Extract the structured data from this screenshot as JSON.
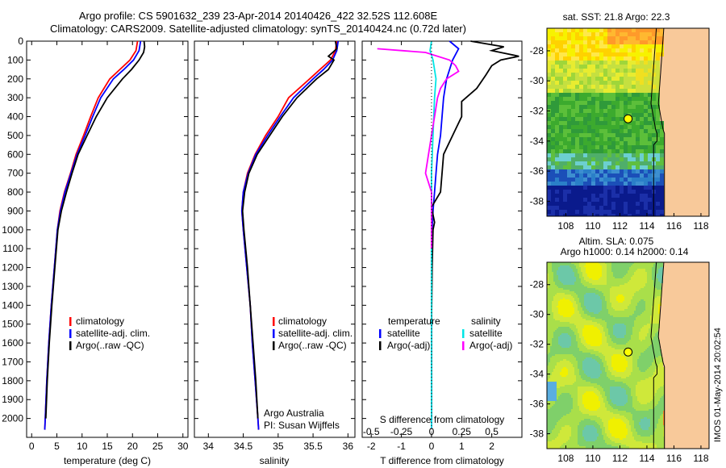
{
  "header": {
    "line1": "Argo profile: CS 5901632_239 23-Apr-2014 20140426_422 32.52S 112.608E",
    "line2": "Climatology: CARS2009. Satellite-adjusted climatology: synTS_20140424.nc (0.72d later)"
  },
  "vertical_stamp": "IMOS 01-May-2014 20:02:54",
  "colors": {
    "clim": "#ff0000",
    "sat": "#0000ff",
    "argo": "#000000",
    "sat_s": "#00e5e5",
    "argo_s": "#ff00ff"
  },
  "chart_data": [
    {
      "type": "line",
      "panel": "temperature",
      "xlabel": "temperature (deg C)",
      "xlim": [
        -1,
        31
      ],
      "xticks": [
        0,
        5,
        10,
        15,
        20,
        25,
        30
      ],
      "ylim": [
        2100,
        0
      ],
      "yticks": [
        0,
        100,
        200,
        300,
        400,
        500,
        600,
        700,
        800,
        900,
        1000,
        1100,
        1200,
        1300,
        1400,
        1500,
        1600,
        1700,
        1800,
        1900,
        2000
      ],
      "legend": [
        "climatology",
        "satellite-adj. clim.",
        "Argo(..raw -QC)"
      ],
      "series": [
        {
          "name": "climatology",
          "color": "#ff0000",
          "points": [
            [
              21.0,
              0
            ],
            [
              20.7,
              50
            ],
            [
              19.5,
              100
            ],
            [
              17.5,
              150
            ],
            [
              15.5,
              200
            ],
            [
              13.2,
              300
            ],
            [
              11.7,
              400
            ],
            [
              10.3,
              500
            ],
            [
              8.8,
              600
            ],
            [
              7.7,
              700
            ],
            [
              6.5,
              800
            ],
            [
              5.6,
              900
            ],
            [
              5.1,
              1000
            ],
            [
              4.5,
              1200
            ],
            [
              3.9,
              1400
            ],
            [
              3.4,
              1600
            ],
            [
              3.0,
              1800
            ],
            [
              2.7,
              2000
            ],
            [
              2.6,
              2060
            ]
          ]
        },
        {
          "name": "satellite-adj. clim.",
          "color": "#0000ff",
          "points": [
            [
              21.6,
              0
            ],
            [
              21.3,
              50
            ],
            [
              20.2,
              100
            ],
            [
              18.3,
              150
            ],
            [
              16.2,
              200
            ],
            [
              13.7,
              300
            ],
            [
              12.1,
              400
            ],
            [
              10.6,
              500
            ],
            [
              9.0,
              600
            ],
            [
              7.8,
              700
            ],
            [
              6.6,
              800
            ],
            [
              5.7,
              900
            ],
            [
              5.1,
              1000
            ],
            [
              4.5,
              1200
            ],
            [
              3.9,
              1400
            ],
            [
              3.4,
              1600
            ],
            [
              3.0,
              1800
            ],
            [
              2.7,
              2000
            ],
            [
              2.6,
              2060
            ]
          ]
        },
        {
          "name": "Argo(..raw -QC)",
          "color": "#000000",
          "points": [
            [
              22.3,
              0
            ],
            [
              22.4,
              30
            ],
            [
              22.2,
              60
            ],
            [
              21.3,
              100
            ],
            [
              19.8,
              150
            ],
            [
              18.0,
              200
            ],
            [
              15.0,
              300
            ],
            [
              12.8,
              400
            ],
            [
              11.0,
              500
            ],
            [
              9.2,
              600
            ],
            [
              8.0,
              700
            ],
            [
              6.9,
              800
            ],
            [
              5.9,
              900
            ],
            [
              5.2,
              1000
            ],
            [
              4.6,
              1200
            ],
            [
              4.0,
              1400
            ],
            [
              3.5,
              1600
            ],
            [
              3.1,
              1800
            ],
            [
              2.8,
              2000
            ]
          ]
        }
      ]
    },
    {
      "type": "line",
      "panel": "salinity",
      "xlabel": "salinity",
      "xlim": [
        33.8,
        36.1
      ],
      "xticks": [
        34,
        34.5,
        35,
        35.5,
        36
      ],
      "ylim": [
        2100,
        0
      ],
      "legend": [
        "climatology",
        "satellite-adj. clim.",
        "Argo(..raw -QC)"
      ],
      "annotation": [
        "Argo Australia",
        "PI: Susan Wijffels"
      ],
      "series": [
        {
          "name": "climatology",
          "color": "#ff0000",
          "points": [
            [
              35.84,
              0
            ],
            [
              35.82,
              50
            ],
            [
              35.75,
              100
            ],
            [
              35.6,
              150
            ],
            [
              35.45,
              200
            ],
            [
              35.15,
              300
            ],
            [
              35.0,
              400
            ],
            [
              34.82,
              500
            ],
            [
              34.67,
              600
            ],
            [
              34.56,
              700
            ],
            [
              34.5,
              800
            ],
            [
              34.48,
              900
            ],
            [
              34.5,
              1000
            ],
            [
              34.55,
              1200
            ],
            [
              34.6,
              1400
            ],
            [
              34.63,
              1600
            ],
            [
              34.67,
              1800
            ],
            [
              34.71,
              2000
            ],
            [
              34.72,
              2060
            ]
          ]
        },
        {
          "name": "satellite-adj. clim.",
          "color": "#0000ff",
          "points": [
            [
              35.86,
              0
            ],
            [
              35.84,
              50
            ],
            [
              35.78,
              100
            ],
            [
              35.65,
              150
            ],
            [
              35.5,
              200
            ],
            [
              35.22,
              300
            ],
            [
              35.03,
              400
            ],
            [
              34.85,
              500
            ],
            [
              34.68,
              600
            ],
            [
              34.57,
              700
            ],
            [
              34.5,
              800
            ],
            [
              34.48,
              900
            ],
            [
              34.5,
              1000
            ],
            [
              34.55,
              1200
            ],
            [
              34.6,
              1400
            ],
            [
              34.63,
              1600
            ],
            [
              34.67,
              1800
            ],
            [
              34.71,
              2000
            ],
            [
              34.72,
              2060
            ]
          ]
        },
        {
          "name": "Argo(..raw -QC)",
          "color": "#000000",
          "points": [
            [
              35.82,
              0
            ],
            [
              35.84,
              40
            ],
            [
              35.72,
              80
            ],
            [
              35.8,
              100
            ],
            [
              35.72,
              150
            ],
            [
              35.55,
              200
            ],
            [
              35.27,
              300
            ],
            [
              35.06,
              400
            ],
            [
              34.88,
              500
            ],
            [
              34.7,
              600
            ],
            [
              34.58,
              700
            ],
            [
              34.52,
              800
            ],
            [
              34.49,
              900
            ],
            [
              34.51,
              1000
            ],
            [
              34.56,
              1200
            ],
            [
              34.6,
              1400
            ],
            [
              34.64,
              1600
            ],
            [
              34.68,
              1800
            ],
            [
              34.71,
              2000
            ]
          ]
        }
      ]
    },
    {
      "type": "line",
      "panel": "difference",
      "xlabel": "T difference from climatology",
      "xlabel2": "S difference from climatology",
      "xlim": [
        -2.3,
        3.0
      ],
      "xticks": [
        -2,
        -1,
        0,
        1,
        2
      ],
      "xticks2": [
        -0.5,
        -0.25,
        0,
        0.25,
        0.5
      ],
      "ylim": [
        2100,
        0
      ],
      "legend_temperature": {
        "title": "temperature",
        "items": [
          "satellite",
          "Argo(-adj)"
        ]
      },
      "legend_salinity": {
        "title": "salinity",
        "items": [
          "satellite",
          "Argo(-adj)"
        ]
      },
      "series": [
        {
          "name": "temperature satellite",
          "color": "#0000ff",
          "points": [
            [
              0.6,
              0
            ],
            [
              0.9,
              40
            ],
            [
              0.7,
              100
            ],
            [
              0.5,
              200
            ],
            [
              0.4,
              300
            ],
            [
              0.35,
              400
            ],
            [
              0.3,
              500
            ],
            [
              0.2,
              600
            ],
            [
              0.15,
              700
            ],
            [
              0.1,
              800
            ],
            [
              0.05,
              900
            ],
            [
              0.02,
              1000
            ],
            [
              0.0,
              1200
            ],
            [
              0.0,
              2050
            ]
          ]
        },
        {
          "name": "temperature Argo(-adj)",
          "color": "#000000",
          "points": [
            [
              1.3,
              0
            ],
            [
              2.4,
              30
            ],
            [
              2.0,
              50
            ],
            [
              2.9,
              80
            ],
            [
              2.3,
              100
            ],
            [
              2.0,
              130
            ],
            [
              1.8,
              180
            ],
            [
              1.5,
              250
            ],
            [
              1.0,
              320
            ],
            [
              1.0,
              400
            ],
            [
              0.7,
              500
            ],
            [
              0.4,
              600
            ],
            [
              0.35,
              700
            ],
            [
              0.3,
              800
            ],
            [
              0.0,
              880
            ],
            [
              0.1,
              960
            ],
            [
              0.05,
              1000
            ],
            [
              0.02,
              1200
            ],
            [
              0.0,
              1500
            ],
            [
              0.0,
              2000
            ]
          ]
        },
        {
          "name": "salinity satellite",
          "color": "#00e5e5",
          "points": [
            [
              0.0,
              0
            ],
            [
              -0.05,
              50
            ],
            [
              0.05,
              100
            ],
            [
              0.15,
              200
            ],
            [
              0.1,
              300
            ],
            [
              0.05,
              500
            ],
            [
              0.0,
              700
            ],
            [
              0.0,
              1000
            ],
            [
              0.0,
              2050
            ]
          ]
        },
        {
          "name": "salinity Argo(-adj)",
          "color": "#ff00ff",
          "points": [
            [
              -1.8,
              40
            ],
            [
              -1.0,
              50
            ],
            [
              -0.2,
              60
            ],
            [
              0.6,
              100
            ],
            [
              0.8,
              130
            ],
            [
              0.9,
              160
            ],
            [
              0.5,
              200
            ],
            [
              0.3,
              250
            ],
            [
              0.2,
              300
            ],
            [
              0.1,
              400
            ],
            [
              0.0,
              500
            ],
            [
              -0.1,
              600
            ],
            [
              -0.2,
              700
            ],
            [
              0.0,
              800
            ],
            [
              0.0,
              900
            ],
            [
              0.0,
              1000
            ],
            [
              0.0,
              1100
            ]
          ]
        }
      ]
    },
    {
      "type": "heatmap",
      "panel": "map_sst",
      "title": "sat. SST: 21.8 Argo: 22.3",
      "xticks": [
        108,
        110,
        112,
        114,
        116,
        118
      ],
      "yticks": [
        -28,
        -30,
        -32,
        -34,
        -36,
        -38
      ],
      "xlim": [
        106.6,
        118.6
      ],
      "ylim": [
        -39,
        -26.5
      ],
      "float": [
        112.608,
        -32.52
      ]
    },
    {
      "type": "heatmap",
      "panel": "map_sla",
      "title": "Altim. SLA: 0.075",
      "subtitle": "Argo h1000: 0.14 h2000: 0.14",
      "xticks": [
        108,
        110,
        112,
        114,
        116,
        118
      ],
      "yticks": [
        -28,
        -30,
        -32,
        -34,
        -36,
        -38
      ],
      "xlim": [
        106.6,
        118.6
      ],
      "ylim": [
        -39,
        -26.5
      ],
      "float": [
        112.608,
        -32.52
      ]
    }
  ]
}
